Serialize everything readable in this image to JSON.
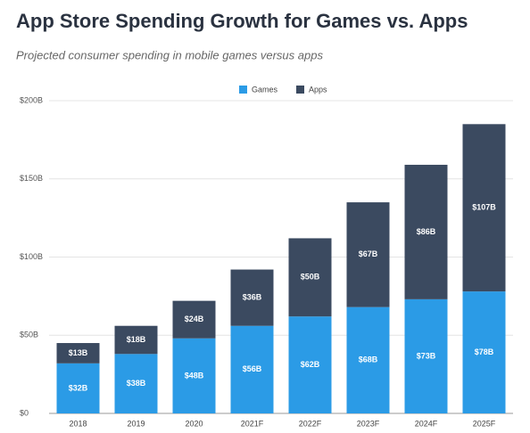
{
  "chart_data": {
    "type": "stacked-bar",
    "title": "App Store Spending Growth for Games vs. Apps",
    "subtitle": "Projected consumer spending in mobile games versus apps",
    "categories": [
      "2018",
      "2019",
      "2020",
      "2021F",
      "2022F",
      "2023F",
      "2024F",
      "2025F"
    ],
    "series": [
      {
        "name": "Games",
        "color": "#2b9be6",
        "values": [
          32,
          38,
          48,
          56,
          62,
          68,
          73,
          78
        ],
        "value_labels": [
          "$32B",
          "$38B",
          "$48B",
          "$56B",
          "$62B",
          "$68B",
          "$73B",
          "$78B"
        ]
      },
      {
        "name": "Apps",
        "color": "#3b4a60",
        "values": [
          13,
          18,
          24,
          36,
          50,
          67,
          86,
          107
        ],
        "value_labels": [
          "$13B",
          "$18B",
          "$24B",
          "$36B",
          "$50B",
          "$67B",
          "$86B",
          "$107B"
        ]
      }
    ],
    "ylim": [
      0,
      200
    ],
    "yticks": [
      {
        "value": 0,
        "label": "$0"
      },
      {
        "value": 50,
        "label": "$50B"
      },
      {
        "value": 100,
        "label": "$100B"
      },
      {
        "value": 150,
        "label": "$150B"
      },
      {
        "value": 200,
        "label": "$200B"
      }
    ],
    "grid": true,
    "legend": "top"
  }
}
